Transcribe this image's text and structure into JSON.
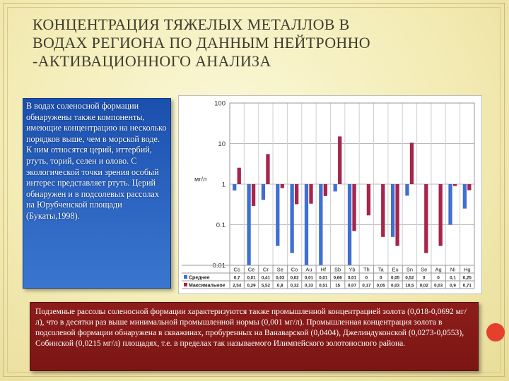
{
  "slide": {
    "title": "КОНЦЕНТРАЦИЯ ТЯЖЕЛЫХ МЕТАЛЛОВ В\nВОДАХ РЕГИОНА ПО ДАННЫМ НЕЙТРОННО\n-АКТИВАЦИОННОГО АНАЛИЗА",
    "left_text": "В водах соленосной формации обнаружены также компоненты, имеющие концентрацию на несколько порядков выше, чем в морской воде. К ним относятся церий, иттербий, ртуть, торий, селен и олово. С экологической точки зрения особый интерес представляет ртуть. Церий обнаружен и в подсолевых рассолах на Юрубченской площади (Букаты,1998).",
    "bottom_text": "Подземные рассолы соленосной формации характеризуются также промышленной концентрацией золота (0,018-0,0692 мг/л), что в десятки раз выше минимальной промышленной нормы (0,001 мг/л). Промышленная концентрация золота в подсолевой формации обнаружена в скважинах, пробуренных на Ванаварской (0,0404), Джелиндуконской (0,0273-0,0553), Собинской (0,0215 мг/л) площадях, т.е. в пределах так называемого Илимпейского золотоносного района."
  },
  "colors": {
    "series_avg": "#3f6fd1",
    "series_max": "#a8244a",
    "blue_box": "#2a5fbd",
    "red_box": "#861b19"
  },
  "chart_data": {
    "type": "bar",
    "ylabel": "мг/л",
    "yscale": "log",
    "ylim": [
      0.01,
      100
    ],
    "ytick_labels": [
      "100",
      "10",
      "1",
      "0.1",
      "0.01"
    ],
    "categories": [
      "Cs",
      "Ce",
      "Cr",
      "Se",
      "Co",
      "Au",
      "Hf",
      "Sb",
      "Yb",
      "Th",
      "Ta",
      "Eu",
      "Sn",
      "Se",
      "Ag",
      "Ni",
      "Hg"
    ],
    "series": [
      {
        "name": "Среднее",
        "values": [
          0.7,
          0.01,
          0.41,
          0.03,
          0.02,
          0.01,
          0.01,
          0.66,
          0.01,
          0,
          0,
          0.05,
          0.52,
          0,
          0,
          0.1,
          0.25
        ],
        "labels": [
          "0,7",
          "0,01",
          "0,41",
          "0,03",
          "0,02",
          "0,01",
          "0,01",
          "0,66",
          "0,01",
          "0",
          "0",
          "0,05",
          "0,52",
          "0",
          "0",
          "0,1",
          "0,25"
        ]
      },
      {
        "name": "Максимальное",
        "values": [
          2.54,
          0.29,
          5.52,
          0.8,
          0.32,
          0.33,
          0.51,
          15,
          0.07,
          0.17,
          0.05,
          0.03,
          10.5,
          0.02,
          0.03,
          0.9,
          0.71
        ],
        "labels": [
          "2,54",
          "0,29",
          "5,52",
          "0,8",
          "0,32",
          "0,33",
          "0,51",
          "15",
          "0,07",
          "0,17",
          "0,05",
          "0,03",
          "10,5",
          "0,02",
          "0,03",
          "0,9",
          "0,71"
        ]
      }
    ],
    "grid": true,
    "legend": "table-bottom"
  }
}
